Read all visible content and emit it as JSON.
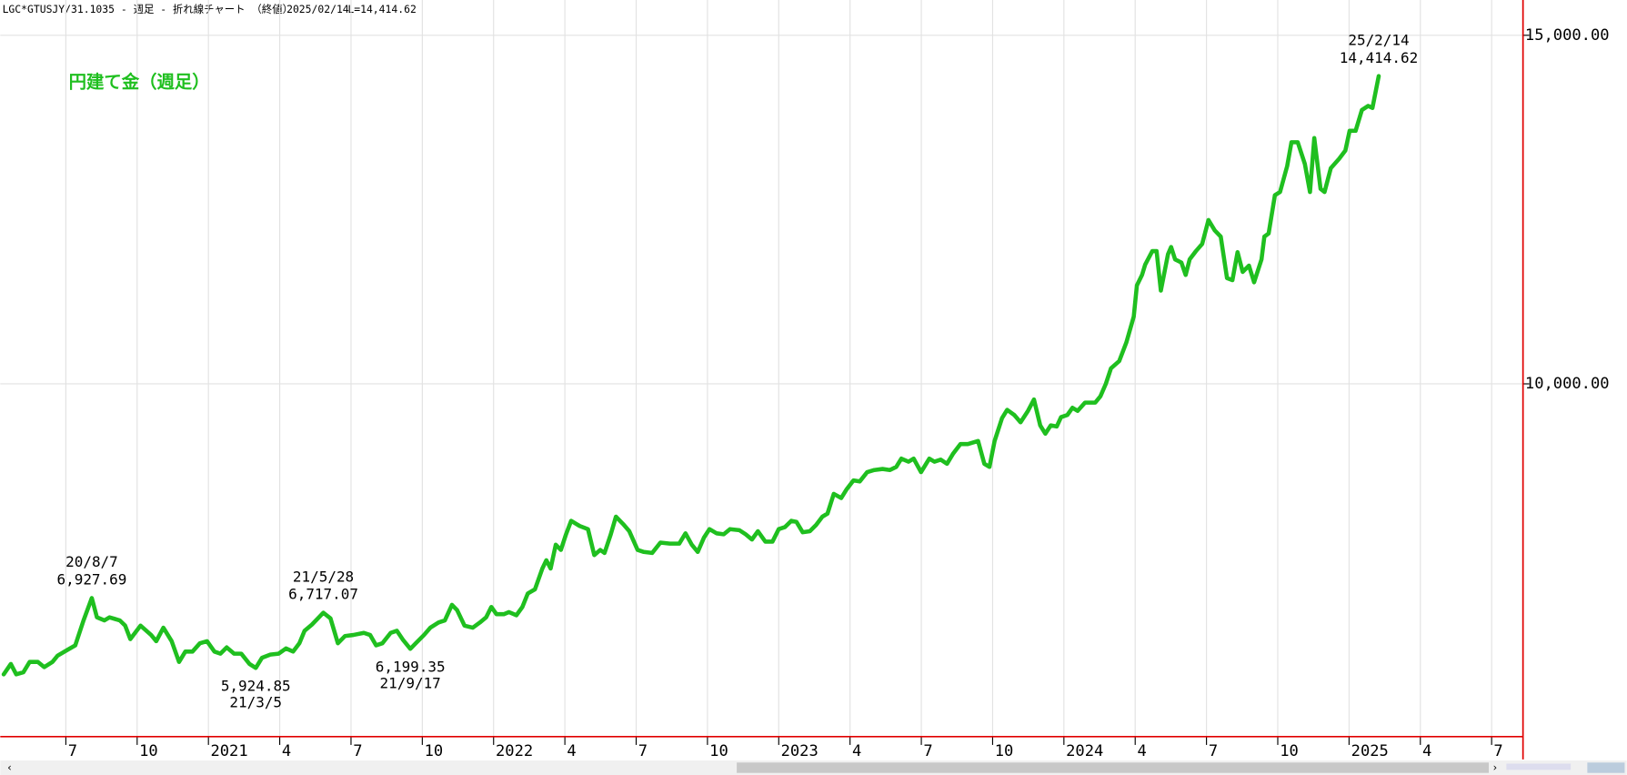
{
  "chart_data": {
    "type": "line",
    "header": "LGC*GTUSJY/31.1035 - 週足 - 折れ線チャート （終値）",
    "header_date": "2025/02/14",
    "header_last": "L=14,414.62",
    "xlim": [
      2020.27,
      2025.61
    ],
    "ylim": [
      4940,
      15506
    ],
    "xticks": [
      {
        "value": 2020.5,
        "label": "7"
      },
      {
        "value": 2020.75,
        "label": "10"
      },
      2021,
      {
        "value": 2021.25,
        "label": "4"
      },
      {
        "value": 2021.5,
        "label": "7"
      },
      {
        "value": 2021.75,
        "label": "10"
      },
      2022,
      {
        "value": 2022.25,
        "label": "4"
      },
      {
        "value": 2022.5,
        "label": "7"
      },
      {
        "value": 2022.75,
        "label": "10"
      },
      2023,
      {
        "value": 2023.25,
        "label": "4"
      },
      {
        "value": 2023.5,
        "label": "7"
      },
      {
        "value": 2023.75,
        "label": "10"
      },
      2024,
      {
        "value": 2024.25,
        "label": "4"
      },
      {
        "value": 2024.5,
        "label": "7"
      },
      {
        "value": 2024.75,
        "label": "10"
      },
      2025,
      {
        "value": 2025.25,
        "label": "4"
      },
      {
        "value": 2025.5,
        "label": "7"
      }
    ],
    "yticks": [
      {
        "value": 10000,
        "label": "10,000.00"
      },
      {
        "value": 15000,
        "label": "15,000.00"
      }
    ],
    "grid": true,
    "axis_color": "#e00000",
    "series": [
      {
        "name": "円建て金（週足）",
        "color": "#1fbf1f",
        "x": [
          2020.282,
          2020.307,
          2020.326,
          2020.351,
          2020.373,
          2020.402,
          2020.424,
          2020.453,
          2020.471,
          2020.508,
          2020.533,
          2020.562,
          2020.591,
          2020.609,
          2020.635,
          2020.653,
          2020.689,
          2020.708,
          2020.726,
          2020.762,
          2020.799,
          2020.817,
          2020.842,
          2020.871,
          2020.897,
          2020.919,
          2020.944,
          2020.97,
          2020.995,
          2021.021,
          2021.042,
          2021.064,
          2021.09,
          2021.115,
          2021.144,
          2021.166,
          2021.188,
          2021.217,
          2021.246,
          2021.272,
          2021.297,
          2021.319,
          2021.337,
          2021.363,
          2021.403,
          2021.428,
          2021.454,
          2021.479,
          2021.508,
          2021.545,
          2021.567,
          2021.588,
          2021.61,
          2021.639,
          2021.661,
          2021.683,
          2021.708,
          2021.727,
          2021.756,
          2021.778,
          2021.807,
          2021.829,
          2021.854,
          2021.872,
          2021.898,
          2021.927,
          2021.952,
          2021.974,
          2021.992,
          2022.01,
          2022.036,
          2022.054,
          2022.08,
          2022.101,
          2022.12,
          2022.145,
          2022.171,
          2022.185,
          2022.2,
          2022.218,
          2022.236,
          2022.254,
          2022.272,
          2022.302,
          2022.331,
          2022.353,
          2022.374,
          2022.389,
          2022.411,
          2022.429,
          2022.454,
          2022.476,
          2022.505,
          2022.527,
          2022.556,
          2022.585,
          2022.618,
          2022.651,
          2022.673,
          2022.695,
          2022.716,
          2022.738,
          2022.757,
          2022.782,
          2022.807,
          2022.829,
          2022.862,
          2022.884,
          2022.906,
          2022.927,
          2022.953,
          2022.978,
          2023.0,
          2023.022,
          2023.044,
          2023.062,
          2023.084,
          2023.109,
          2023.131,
          2023.153,
          2023.171,
          2023.193,
          2023.219,
          2023.237,
          2023.262,
          2023.284,
          2023.31,
          2023.335,
          2023.364,
          2023.39,
          2023.412,
          2023.43,
          2023.455,
          2023.473,
          2023.499,
          2023.528,
          2023.546,
          2023.568,
          2023.59,
          2023.612,
          2023.637,
          2023.663,
          2023.699,
          2023.721,
          2023.739,
          2023.757,
          2023.783,
          2023.801,
          2023.826,
          2023.848,
          2023.874,
          2023.895,
          2023.917,
          2023.935,
          2023.954,
          2023.975,
          2023.99,
          2024.012,
          2024.03,
          2024.048,
          2024.074,
          2024.11,
          2024.128,
          2024.147,
          2024.165,
          2024.194,
          2024.219,
          2024.245,
          2024.256,
          2024.274,
          2024.285,
          2024.31,
          2024.325,
          2024.34,
          2024.365,
          2024.376,
          2024.39,
          2024.412,
          2024.427,
          2024.441,
          2024.463,
          2024.485,
          2024.507,
          2024.529,
          2024.55,
          2024.572,
          2024.591,
          2024.609,
          2024.627,
          2024.649,
          2024.667,
          2024.693,
          2024.703,
          2024.718,
          2024.74,
          2024.758,
          2024.783,
          2024.798,
          2024.82,
          2024.845,
          2024.863,
          2024.878,
          2024.9,
          2024.914,
          2024.936,
          2024.965,
          2024.987,
          2025.002,
          2025.023,
          2025.045,
          2025.067,
          2025.082,
          2025.104
        ],
        "values": [
          5833,
          5982,
          5833,
          5863,
          6011,
          6011,
          5937,
          6011,
          6101,
          6190,
          6249,
          6607,
          6927.69,
          6651,
          6607,
          6651,
          6607,
          6532,
          6339,
          6532,
          6398,
          6309,
          6502,
          6309,
          6011,
          6160,
          6160,
          6279,
          6309,
          6160,
          6130,
          6220,
          6130,
          6130,
          5982,
          5924.85,
          6071,
          6116,
          6130,
          6205,
          6160,
          6279,
          6458,
          6547,
          6717.07,
          6636,
          6279,
          6383,
          6398,
          6428,
          6398,
          6249,
          6279,
          6428,
          6458,
          6324,
          6199.35,
          6279,
          6398,
          6502,
          6577,
          6607,
          6830,
          6755,
          6532,
          6502,
          6577,
          6651,
          6800,
          6696,
          6696,
          6726,
          6681,
          6800,
          6993,
          7053,
          7351,
          7470,
          7351,
          7693,
          7618,
          7842,
          8035,
          7961,
          7916,
          7544,
          7618,
          7574,
          7842,
          8095,
          7990,
          7886,
          7618,
          7589,
          7574,
          7723,
          7708,
          7708,
          7856,
          7693,
          7589,
          7797,
          7916,
          7856,
          7842,
          7916,
          7901,
          7842,
          7767,
          7886,
          7737,
          7737,
          7916,
          7946,
          8035,
          8020,
          7871,
          7886,
          7976,
          8095,
          8139,
          8422,
          8362,
          8481,
          8615,
          8600,
          8734,
          8764,
          8779,
          8764,
          8809,
          8928,
          8883,
          8928,
          8734,
          8928,
          8883,
          8913,
          8853,
          9002,
          9136,
          9136,
          9181,
          8853,
          8809,
          9181,
          9508,
          9627,
          9553,
          9449,
          9612,
          9776,
          9404,
          9285,
          9404,
          9389,
          9523,
          9553,
          9657,
          9612,
          9731,
          9731,
          9821,
          10000,
          10222,
          10327,
          10594,
          10966,
          11413,
          11562,
          11710,
          11904,
          11904,
          11338,
          11859,
          11963,
          11785,
          11740,
          11562,
          11785,
          11904,
          12008,
          12350,
          12201,
          12112,
          11517,
          11487,
          11889,
          11606,
          11696,
          11457,
          11785,
          12112,
          12157,
          12707,
          12752,
          13124,
          13466,
          13466,
          13154,
          12752,
          13526,
          12797,
          12752,
          13094,
          13228,
          13347,
          13630,
          13630,
          13928,
          13987,
          13957,
          14414.62
        ]
      }
    ],
    "annotations": [
      {
        "date": "20/8/7",
        "label": "6,927.69",
        "value": 6927.69
      },
      {
        "date": "21/3/5",
        "label": "5,924.85",
        "value": 5924.85
      },
      {
        "date": "21/5/28",
        "label": "6,717.07",
        "value": 6717.07
      },
      {
        "date": "21/9/17",
        "label": "6,199.35",
        "value": 6199.35
      },
      {
        "date": "25/2/14",
        "label": "14,414.62",
        "value": 14414.62
      }
    ]
  }
}
